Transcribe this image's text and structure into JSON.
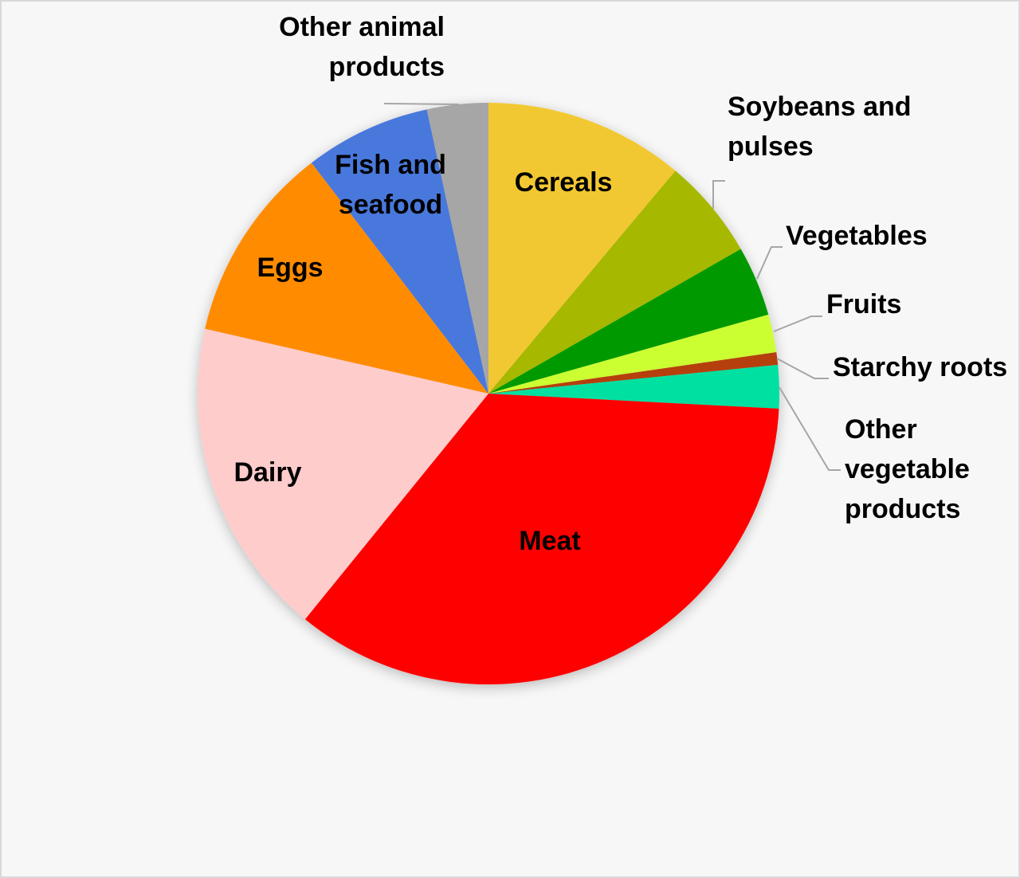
{
  "chart_data": {
    "type": "pie",
    "title": "",
    "start": "top",
    "direction": "clockwise",
    "slices": [
      {
        "label": "Cereals",
        "value": 11.1,
        "color": "#F2C832"
      },
      {
        "label": "Soybeans and pulses",
        "value": 5.6,
        "color": "#A6B800"
      },
      {
        "label": "Vegetables",
        "value": 3.9,
        "color": "#009A00"
      },
      {
        "label": "Fruits",
        "value": 2.1,
        "color": "#CCFF33"
      },
      {
        "label": "Starchy roots",
        "value": 0.7,
        "color": "#B5400B"
      },
      {
        "label": "Other vegetable products",
        "value": 2.4,
        "color": "#00E0A0"
      },
      {
        "label": "Meat",
        "value": 35.0,
        "color": "#FF0000"
      },
      {
        "label": "Dairy",
        "value": 17.7,
        "color": "#FFCCCC"
      },
      {
        "label": "Eggs",
        "value": 11.0,
        "color": "#FF8C00"
      },
      {
        "label": "Fish and seafood",
        "value": 7.0,
        "color": "#4A78DC"
      },
      {
        "label": "Other animal products",
        "value": 3.4,
        "color": "#A6A6A6"
      }
    ]
  }
}
